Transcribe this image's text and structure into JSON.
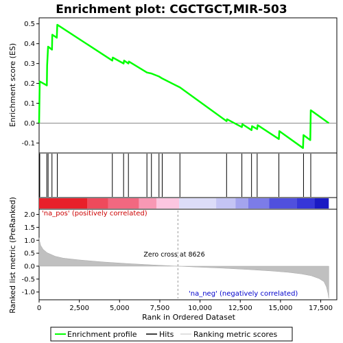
{
  "chart_data": {
    "type": "line",
    "title": "Enrichment plot: CGCTGCT,MIR-503",
    "xlabel": "Rank in Ordered Dataset",
    "ylabel_top": "Enrichment score (ES)",
    "ylabel_bottom": "Ranked list metric (PreRanked)",
    "xlim": [
      0,
      18500
    ],
    "x_ticks": [
      0,
      2500,
      5000,
      7500,
      10000,
      12500,
      15000,
      17500
    ],
    "x_tick_labels": [
      "0",
      "2,500",
      "5,000",
      "7,500",
      "10,000",
      "12,500",
      "15,000",
      "17,500"
    ],
    "es_ylim": [
      -0.15,
      0.53
    ],
    "es_ticks": [
      -0.1,
      0.0,
      0.1,
      0.2,
      0.3,
      0.4,
      0.5
    ],
    "es_tick_labels": [
      "-0.1",
      "0.0",
      "0.1",
      "0.2",
      "0.3",
      "0.4",
      "0.5"
    ],
    "metric_ylim": [
      -1.3,
      2.2
    ],
    "metric_ticks": [
      -1.0,
      -0.5,
      0.0,
      0.5,
      1.0,
      1.5,
      2.0
    ],
    "metric_tick_labels": [
      "-1.0",
      "-0.5",
      "0.0",
      "0.5",
      "1.0",
      "1.5",
      "2.0"
    ],
    "series": [
      {
        "name": "Enrichment profile",
        "color": "#00ff00",
        "points": [
          [
            0,
            0.0
          ],
          [
            40,
            0.21
          ],
          [
            480,
            0.19
          ],
          [
            500,
            0.29
          ],
          [
            560,
            0.385
          ],
          [
            800,
            0.37
          ],
          [
            820,
            0.445
          ],
          [
            1100,
            0.43
          ],
          [
            1130,
            0.495
          ],
          [
            4550,
            0.315
          ],
          [
            4580,
            0.33
          ],
          [
            5250,
            0.3
          ],
          [
            5280,
            0.315
          ],
          [
            5550,
            0.3
          ],
          [
            5580,
            0.31
          ],
          [
            6700,
            0.255
          ],
          [
            6980,
            0.25
          ],
          [
            7450,
            0.235
          ],
          [
            7650,
            0.225
          ],
          [
            8750,
            0.18
          ],
          [
            11650,
            0.01
          ],
          [
            11680,
            0.02
          ],
          [
            12600,
            -0.02
          ],
          [
            12630,
            -0.005
          ],
          [
            13200,
            -0.035
          ],
          [
            13230,
            -0.015
          ],
          [
            13550,
            -0.03
          ],
          [
            13580,
            -0.01
          ],
          [
            14900,
            -0.08
          ],
          [
            14930,
            -0.04
          ],
          [
            16400,
            -0.125
          ],
          [
            16430,
            -0.06
          ],
          [
            16850,
            -0.085
          ],
          [
            16880,
            0.065
          ],
          [
            18000,
            0.0
          ]
        ]
      }
    ],
    "hits": [
      40,
      480,
      560,
      800,
      1130,
      4550,
      5250,
      5550,
      6700,
      6980,
      7450,
      7650,
      8750,
      11650,
      12600,
      13200,
      13550,
      14900,
      16430,
      16880
    ],
    "heatmap_bands": [
      {
        "from": 0,
        "to": 3000,
        "color": "#e8202a"
      },
      {
        "from": 3000,
        "to": 4300,
        "color": "#ee4a5c"
      },
      {
        "from": 4300,
        "to": 6200,
        "color": "#f26880"
      },
      {
        "from": 6200,
        "to": 7300,
        "color": "#f898b4"
      },
      {
        "from": 7300,
        "to": 8700,
        "color": "#fcc6e0"
      },
      {
        "from": 8700,
        "to": 11000,
        "color": "#dcdcf8"
      },
      {
        "from": 11000,
        "to": 12200,
        "color": "#c4c4f4"
      },
      {
        "from": 12200,
        "to": 13000,
        "color": "#a4a4ee"
      },
      {
        "from": 13000,
        "to": 14300,
        "color": "#7c7ce8"
      },
      {
        "from": 14300,
        "to": 16000,
        "color": "#5050de"
      },
      {
        "from": 16000,
        "to": 17100,
        "color": "#3636d8"
      },
      {
        "from": 17100,
        "to": 18000,
        "color": "#1a1ac4"
      }
    ],
    "metric_profile": {
      "color": "#c0c0c0",
      "points": [
        [
          0,
          1.1
        ],
        [
          40,
          0.95
        ],
        [
          100,
          0.8
        ],
        [
          250,
          0.65
        ],
        [
          500,
          0.52
        ],
        [
          1000,
          0.38
        ],
        [
          1500,
          0.31
        ],
        [
          2500,
          0.24
        ],
        [
          4000,
          0.16
        ],
        [
          5500,
          0.1
        ],
        [
          7000,
          0.05
        ],
        [
          8626,
          0.0
        ],
        [
          10000,
          -0.04
        ],
        [
          11500,
          -0.08
        ],
        [
          13000,
          -0.13
        ],
        [
          14500,
          -0.19
        ],
        [
          15500,
          -0.24
        ],
        [
          16300,
          -0.3
        ],
        [
          16900,
          -0.37
        ],
        [
          17400,
          -0.48
        ],
        [
          17700,
          -0.6
        ],
        [
          17850,
          -0.8
        ],
        [
          17950,
          -1.05
        ],
        [
          18000,
          -1.25
        ]
      ]
    },
    "zero_cross_label": "Zero cross at 8626",
    "zero_cross_x": 8626,
    "annotation_pos": "'na_pos' (positively correlated)",
    "annotation_neg": "'na_neg' (negatively correlated)",
    "legend": {
      "placement": "bottom",
      "items": [
        {
          "label": "Enrichment profile",
          "color": "#00ff00"
        },
        {
          "label": "Hits",
          "color": "#000000"
        },
        {
          "label": "Ranking metric scores",
          "color": "#c0c0c0"
        }
      ]
    },
    "grid": false
  }
}
